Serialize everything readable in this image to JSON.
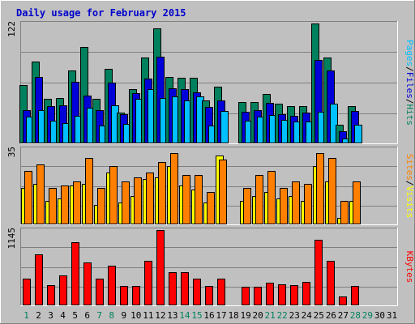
{
  "chart_data": {
    "type": "bar",
    "title": "Daily usage for February 2015",
    "x": [
      "1",
      "2",
      "3",
      "4",
      "5",
      "6",
      "7",
      "8",
      "9",
      "10",
      "11",
      "12",
      "13",
      "14",
      "15",
      "16",
      "17",
      "18",
      "19",
      "20",
      "21",
      "22",
      "23",
      "24",
      "25",
      "26",
      "27",
      "28",
      "29",
      "30",
      "31"
    ],
    "weekend_days": [
      1,
      7,
      8,
      14,
      15,
      21,
      22,
      28,
      29
    ],
    "colors": {
      "hits": "#00805c",
      "files": "#0000d8",
      "pages": "#00c0ff",
      "visits": "#ffff00",
      "sites": "#ff8000",
      "kbytes": "#ff0000",
      "weekend_tick": "#00805c",
      "weekday_tick": "#000000",
      "title": "#0000cc"
    },
    "panels": [
      {
        "id": "top",
        "ymax": 122,
        "ymax_label": "122",
        "legend": [
          {
            "text": "Pages",
            "color": "#00c0ff"
          },
          {
            "text": "/",
            "color": "#000000"
          },
          {
            "text": "Files",
            "color": "#0000d8"
          },
          {
            "text": "/",
            "color": "#000000"
          },
          {
            "text": "Hits",
            "color": "#00805c"
          }
        ],
        "series": [
          {
            "name": "Hits",
            "color": "#00805c",
            "values": [
              59,
              83,
              45,
              46,
              74,
              98,
              45,
              76,
              31,
              55,
              87,
              117,
              68,
              67,
              67,
              44,
              58,
              0,
              42,
              42,
              50,
              40,
              38,
              38,
              122,
              87,
              19,
              38,
              0,
              0,
              0
            ]
          },
          {
            "name": "Files",
            "color": "#0000d8",
            "values": [
              34,
              68,
              38,
              39,
              63,
              49,
              34,
              62,
              30,
              51,
              66,
              88,
              56,
              55,
              52,
              37,
              44,
              0,
              32,
              34,
              41,
              30,
              28,
              31,
              85,
              74,
              12,
              33,
              0,
              0,
              0
            ]
          },
          {
            "name": "Pages",
            "color": "#00c0ff",
            "values": [
              27,
              34,
              23,
              21,
              28,
              36,
              18,
              39,
              20,
              45,
              55,
              46,
              48,
              44,
              48,
              18,
              33,
              0,
              23,
              27,
              29,
              24,
              22,
              22,
              32,
              40,
              5,
              19,
              0,
              0,
              0
            ]
          }
        ]
      },
      {
        "id": "middle",
        "ymax": 35,
        "ymax_label": "35",
        "legend": [
          {
            "text": "Sites",
            "color": "#ff8000"
          },
          {
            "text": "/",
            "color": "#000000"
          },
          {
            "text": "Visits",
            "color": "#ffff00"
          }
        ],
        "series": [
          {
            "name": "Visits",
            "color": "#ffff00",
            "values": [
              17,
              19,
              11,
              12,
              18,
              19,
              9,
              24,
              10,
              13,
              21,
              22,
              27,
              18,
              16,
              10,
              32,
              0,
              11,
              13,
              15,
              12,
              13,
              11,
              27,
              20,
              3,
              11,
              0,
              0,
              0
            ]
          },
          {
            "name": "Sites",
            "color": "#ff8000",
            "values": [
              25,
              28,
              17,
              18,
              20,
              31,
              17,
              27,
              20,
              22,
              24,
              29,
              33,
              23,
              23,
              15,
              30,
              0,
              17,
              23,
              25,
              17,
              20,
              19,
              33,
              31,
              11,
              20,
              0,
              0,
              0
            ]
          }
        ]
      },
      {
        "id": "bottom",
        "ymax": 1145,
        "ymax_label": "1145",
        "legend": [
          {
            "text": "KBytes",
            "color": "#ff0000"
          }
        ],
        "series": [
          {
            "name": "KBytes",
            "color": "#ff0000",
            "values": [
              410,
              780,
              310,
              450,
              960,
              650,
              410,
              600,
              290,
              300,
              680,
              1145,
              510,
              500,
              410,
              300,
              410,
              0,
              280,
              280,
              350,
              320,
              310,
              360,
              1000,
              680,
              130,
              300,
              0,
              0,
              0
            ]
          }
        ]
      }
    ]
  }
}
